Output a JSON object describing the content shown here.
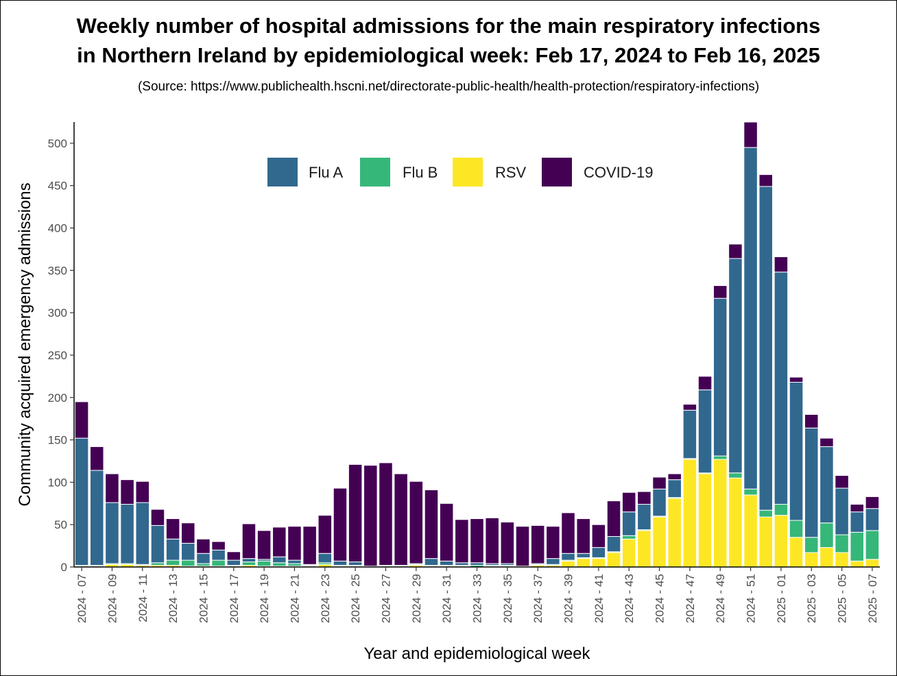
{
  "title_line1": "Weekly number of hospital admissions for the main respiratory infections",
  "title_line2": "in Northern Ireland by epidemiological week: Feb 17, 2024 to Feb 16, 2025",
  "subtitle": "(Source: https://www.publichealth.hscni.net/directorate-public-health/health-protection/respiratory-infections)",
  "chart_data": {
    "type": "bar",
    "stacked": true,
    "xlabel": "Year and epidemiological week",
    "ylabel": "Community acquired emergency admissions",
    "ylim": [
      0,
      525
    ],
    "yticks": [
      0,
      50,
      100,
      150,
      200,
      250,
      300,
      350,
      400,
      450,
      500
    ],
    "grid": false,
    "legend_position": "top-center",
    "categories": [
      "2024 - 07",
      "2024 - 08",
      "2024 - 09",
      "2024 - 10",
      "2024 - 11",
      "2024 - 12",
      "2024 - 13",
      "2024 - 14",
      "2024 - 15",
      "2024 - 16",
      "2024 - 17",
      "2024 - 18",
      "2024 - 19",
      "2024 - 20",
      "2024 - 21",
      "2024 - 22",
      "2024 - 23",
      "2024 - 24",
      "2024 - 25",
      "2024 - 26",
      "2024 - 27",
      "2024 - 28",
      "2024 - 29",
      "2024 - 30",
      "2024 - 31",
      "2024 - 32",
      "2024 - 33",
      "2024 - 34",
      "2024 - 35",
      "2024 - 36",
      "2024 - 37",
      "2024 - 38",
      "2024 - 39",
      "2024 - 40",
      "2024 - 41",
      "2024 - 42",
      "2024 - 43",
      "2024 - 44",
      "2024 - 45",
      "2024 - 46",
      "2024 - 47",
      "2024 - 48",
      "2024 - 49",
      "2024 - 50",
      "2024 - 51",
      "2024 - 52",
      "2025 - 01",
      "2025 - 02",
      "2025 - 03",
      "2025 - 04",
      "2025 - 05",
      "2025 - 06",
      "2025 - 07"
    ],
    "tick_labels": [
      "2024 - 07",
      "2024 - 09",
      "2024 - 11",
      "2024 - 13",
      "2024 - 15",
      "2024 - 17",
      "2024 - 19",
      "2024 - 21",
      "2024 - 23",
      "2024 - 25",
      "2024 - 27",
      "2024 - 29",
      "2024 - 31",
      "2024 - 33",
      "2024 - 35",
      "2024 - 37",
      "2024 - 39",
      "2024 - 41",
      "2024 - 43",
      "2024 - 45",
      "2024 - 47",
      "2024 - 49",
      "2024 - 51",
      "2025 - 01",
      "2025 - 03",
      "2025 - 05",
      "2025 - 07"
    ],
    "series": [
      {
        "name": "RSV",
        "color": "#fde725",
        "values": [
          1,
          1,
          3,
          3,
          2,
          2,
          2,
          1,
          1,
          1,
          1,
          2,
          1,
          1,
          1,
          1,
          3,
          1,
          1,
          0,
          1,
          1,
          2,
          1,
          1,
          1,
          0,
          1,
          1,
          1,
          2,
          2,
          7,
          10,
          10,
          17,
          33,
          43,
          59,
          81,
          127,
          110,
          127,
          105,
          85,
          59,
          61,
          35,
          17,
          23,
          17,
          7,
          9
        ]
      },
      {
        "name": "Flu B",
        "color": "#35b779",
        "values": [
          1,
          1,
          1,
          1,
          1,
          3,
          6,
          7,
          3,
          7,
          1,
          4,
          6,
          4,
          3,
          1,
          2,
          1,
          1,
          0,
          1,
          0,
          1,
          1,
          1,
          1,
          2,
          1,
          1,
          0,
          1,
          1,
          1,
          1,
          1,
          1,
          4,
          1,
          1,
          1,
          1,
          1,
          4,
          6,
          7,
          8,
          13,
          20,
          18,
          29,
          21,
          34,
          34
        ]
      },
      {
        "name": "Flu A",
        "color": "#31688e",
        "values": [
          150,
          112,
          72,
          70,
          73,
          44,
          25,
          20,
          12,
          12,
          6,
          4,
          2,
          7,
          4,
          1,
          11,
          5,
          4,
          1,
          0,
          1,
          1,
          8,
          5,
          3,
          3,
          2,
          2,
          0,
          1,
          7,
          8,
          5,
          12,
          18,
          28,
          30,
          32,
          21,
          57,
          98,
          186,
          253,
          403,
          382,
          274,
          163,
          129,
          90,
          55,
          24,
          26
        ]
      },
      {
        "name": "COVID-19",
        "color": "#440154",
        "values": [
          43,
          28,
          34,
          29,
          25,
          19,
          24,
          24,
          17,
          10,
          10,
          41,
          34,
          35,
          40,
          45,
          45,
          86,
          115,
          119,
          121,
          108,
          97,
          81,
          68,
          51,
          52,
          54,
          49,
          47,
          45,
          38,
          48,
          41,
          27,
          42,
          23,
          15,
          14,
          7,
          7,
          16,
          15,
          17,
          30,
          14,
          18,
          6,
          16,
          10,
          15,
          9,
          14
        ]
      }
    ]
  }
}
